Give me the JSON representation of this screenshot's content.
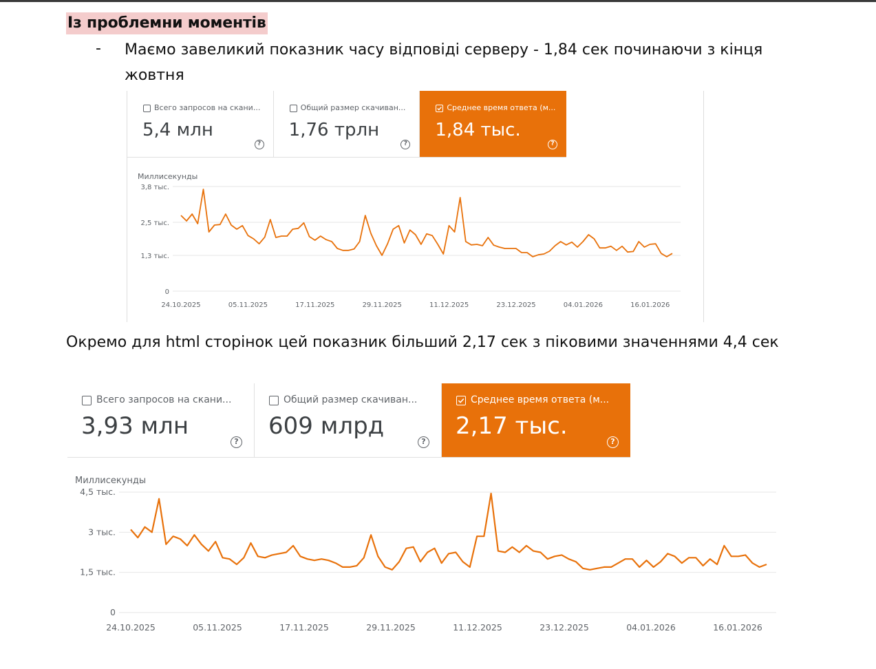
{
  "heading": "Із проблемни моментів",
  "bullet": {
    "marker": "-",
    "text": "Маємо завеликий показник часу відповіді серверу - 1,84 сек починаючи з кінця жовтня"
  },
  "paragraph2": "Окремо для html сторінок цей показник більший 2,17 сек з піковими значеннями 4,4 сек",
  "colors": {
    "accent": "#e8710a",
    "highlight": "#f4cccc",
    "grid": "#e6e6e6"
  },
  "screenshot1": {
    "tiles": [
      {
        "label": "Всего запросов на скани...",
        "value": "5,4 млн",
        "checked": false,
        "help": "?"
      },
      {
        "label": "Общий размер скачиван...",
        "value": "1,76 трлн",
        "checked": false,
        "help": "?"
      },
      {
        "label": "Среднее время ответа (м...",
        "value": "1,84 тыс.",
        "checked": true,
        "help": "?"
      }
    ],
    "chart_data": {
      "type": "line",
      "ylabel": "Миллисекунды",
      "ytick_labels": [
        "3,8 тыс.",
        "2,5 тыс.",
        "1,3 тыс.",
        "0"
      ],
      "ytick_values": [
        3800,
        2500,
        1300,
        0
      ],
      "ylim": [
        0,
        3800
      ],
      "xtick_labels": [
        "24.10.2025",
        "05.11.2025",
        "17.11.2025",
        "29.11.2025",
        "11.12.2025",
        "23.12.2025",
        "04.01.2026",
        "16.01.2026"
      ],
      "x_start": "24.10.2025",
      "x_end": "19.01.2026",
      "grid": true,
      "series": [
        {
          "color": "#e8710a",
          "values": [
            2750,
            2550,
            2800,
            2450,
            3700,
            2150,
            2400,
            2420,
            2800,
            2400,
            2250,
            2380,
            2020,
            1900,
            1720,
            1960,
            2600,
            1950,
            2000,
            2000,
            2250,
            2280,
            2480,
            1980,
            1850,
            2000,
            1870,
            1800,
            1550,
            1480,
            1480,
            1530,
            1800,
            2750,
            2100,
            1650,
            1300,
            1720,
            2250,
            2380,
            1750,
            2220,
            2050,
            1700,
            2080,
            2020,
            1700,
            1350,
            2380,
            2150,
            3400,
            1800,
            1680,
            1700,
            1650,
            1950,
            1670,
            1600,
            1550,
            1550,
            1550,
            1400,
            1400,
            1250,
            1320,
            1350,
            1450,
            1650,
            1800,
            1680,
            1780,
            1600,
            1800,
            2050,
            1900,
            1570,
            1570,
            1630,
            1480,
            1630,
            1420,
            1440,
            1800,
            1600,
            1700,
            1720,
            1370,
            1250,
            1370
          ]
        }
      ]
    }
  },
  "screenshot2": {
    "tiles": [
      {
        "label": "Всего запросов на скани...",
        "value": "3,93 млн",
        "checked": false,
        "help": "?"
      },
      {
        "label": "Общий размер скачиван...",
        "value": "609 млрд",
        "checked": false,
        "help": "?"
      },
      {
        "label": "Среднее время ответа (м...",
        "value": "2,17 тыс.",
        "checked": true,
        "help": "?"
      }
    ],
    "chart_data": {
      "type": "line",
      "ylabel": "Миллисекунды",
      "ytick_labels": [
        "4,5 тыс.",
        "3 тыс.",
        "1,5 тыс.",
        "0"
      ],
      "ytick_values": [
        4500,
        3000,
        1500,
        0
      ],
      "ylim": [
        0,
        4500
      ],
      "xtick_labels": [
        "24.10.2025",
        "05.11.2025",
        "17.11.2025",
        "29.11.2025",
        "11.12.2025",
        "23.12.2025",
        "04.01.2026",
        "16.01.2026"
      ],
      "x_start": "24.10.2025",
      "x_end": "20.01.2026",
      "grid": true,
      "series": [
        {
          "color": "#e8710a",
          "values": [
            3100,
            2800,
            3200,
            3000,
            4250,
            2550,
            2850,
            2750,
            2500,
            2900,
            2550,
            2300,
            2650,
            2050,
            2000,
            1800,
            2050,
            2600,
            2100,
            2050,
            2150,
            2200,
            2250,
            2500,
            2100,
            2000,
            1950,
            2000,
            1950,
            1850,
            1700,
            1700,
            1750,
            2050,
            2900,
            2100,
            1700,
            1600,
            1900,
            2400,
            2450,
            1900,
            2250,
            2400,
            1850,
            2200,
            2250,
            1900,
            1700,
            2850,
            2850,
            4450,
            2300,
            2250,
            2450,
            2250,
            2500,
            2300,
            2250,
            2000,
            2100,
            2150,
            2000,
            1900,
            1650,
            1600,
            1650,
            1700,
            1700,
            1850,
            2000,
            2000,
            1700,
            1950,
            1700,
            1900,
            2200,
            2100,
            1850,
            2050,
            2050,
            1750,
            2000,
            1800,
            2500,
            2100,
            2100,
            2150,
            1850,
            1700,
            1800
          ]
        }
      ]
    }
  }
}
